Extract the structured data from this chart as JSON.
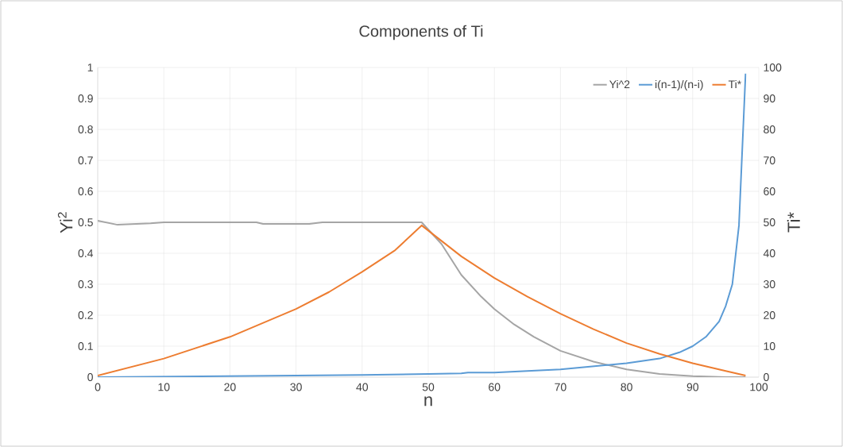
{
  "chart_data": {
    "type": "line",
    "title": "Components of Ti",
    "xlabel": "n",
    "ylabel": "Yi$^{2}$",
    "y2label": "Ti*",
    "xlim": [
      0,
      100
    ],
    "xticks": [
      0,
      10,
      20,
      30,
      40,
      50,
      60,
      70,
      80,
      90,
      100
    ],
    "ylim": [
      0,
      1
    ],
    "yticks": [
      0,
      0.1,
      0.2,
      0.3,
      0.4,
      0.5,
      0.6,
      0.7,
      0.8,
      0.9,
      1
    ],
    "y2lim": [
      0,
      100
    ],
    "y2ticks": [
      0,
      10,
      20,
      30,
      40,
      50,
      60,
      70,
      80,
      90,
      100
    ],
    "grid": true,
    "legend": "top right",
    "series": [
      {
        "name": "Yi^2",
        "color": "#a5a5a5",
        "x": [
          0,
          3,
          8,
          10,
          24,
          25,
          32,
          34,
          49,
          52,
          55,
          58,
          60,
          63,
          66,
          70,
          75,
          80,
          85,
          90,
          95,
          98
        ],
        "values": [
          0.505,
          0.492,
          0.497,
          0.5,
          0.5,
          0.495,
          0.495,
          0.5,
          0.5,
          0.43,
          0.33,
          0.26,
          0.22,
          0.17,
          0.13,
          0.085,
          0.05,
          0.025,
          0.01,
          0.003,
          0,
          0
        ]
      },
      {
        "name": "i(n-1)/(n-i)",
        "color": "#5b9bd5",
        "axis": "y2",
        "x": [
          0,
          30,
          40,
          50,
          55,
          56,
          60,
          65,
          70,
          75,
          80,
          85,
          88,
          90,
          92,
          94,
          95,
          96,
          97,
          98
        ],
        "values": [
          0,
          0.5,
          0.7,
          1,
          1.2,
          1.5,
          1.5,
          2,
          2.5,
          3.5,
          4.5,
          6,
          8,
          10,
          13,
          18,
          23,
          30,
          49,
          98
        ]
      },
      {
        "name": "Ti*",
        "color": "#ed7d31",
        "axis": "y2",
        "x": [
          0,
          10,
          20,
          30,
          35,
          40,
          45,
          49,
          52,
          55,
          60,
          65,
          70,
          75,
          80,
          85,
          90,
          95,
          98
        ],
        "values": [
          0.5,
          6,
          13,
          22,
          27.5,
          34,
          41,
          49,
          44,
          39,
          32,
          26,
          20.5,
          15.5,
          11,
          7.5,
          4.5,
          2,
          0.5
        ]
      }
    ]
  }
}
